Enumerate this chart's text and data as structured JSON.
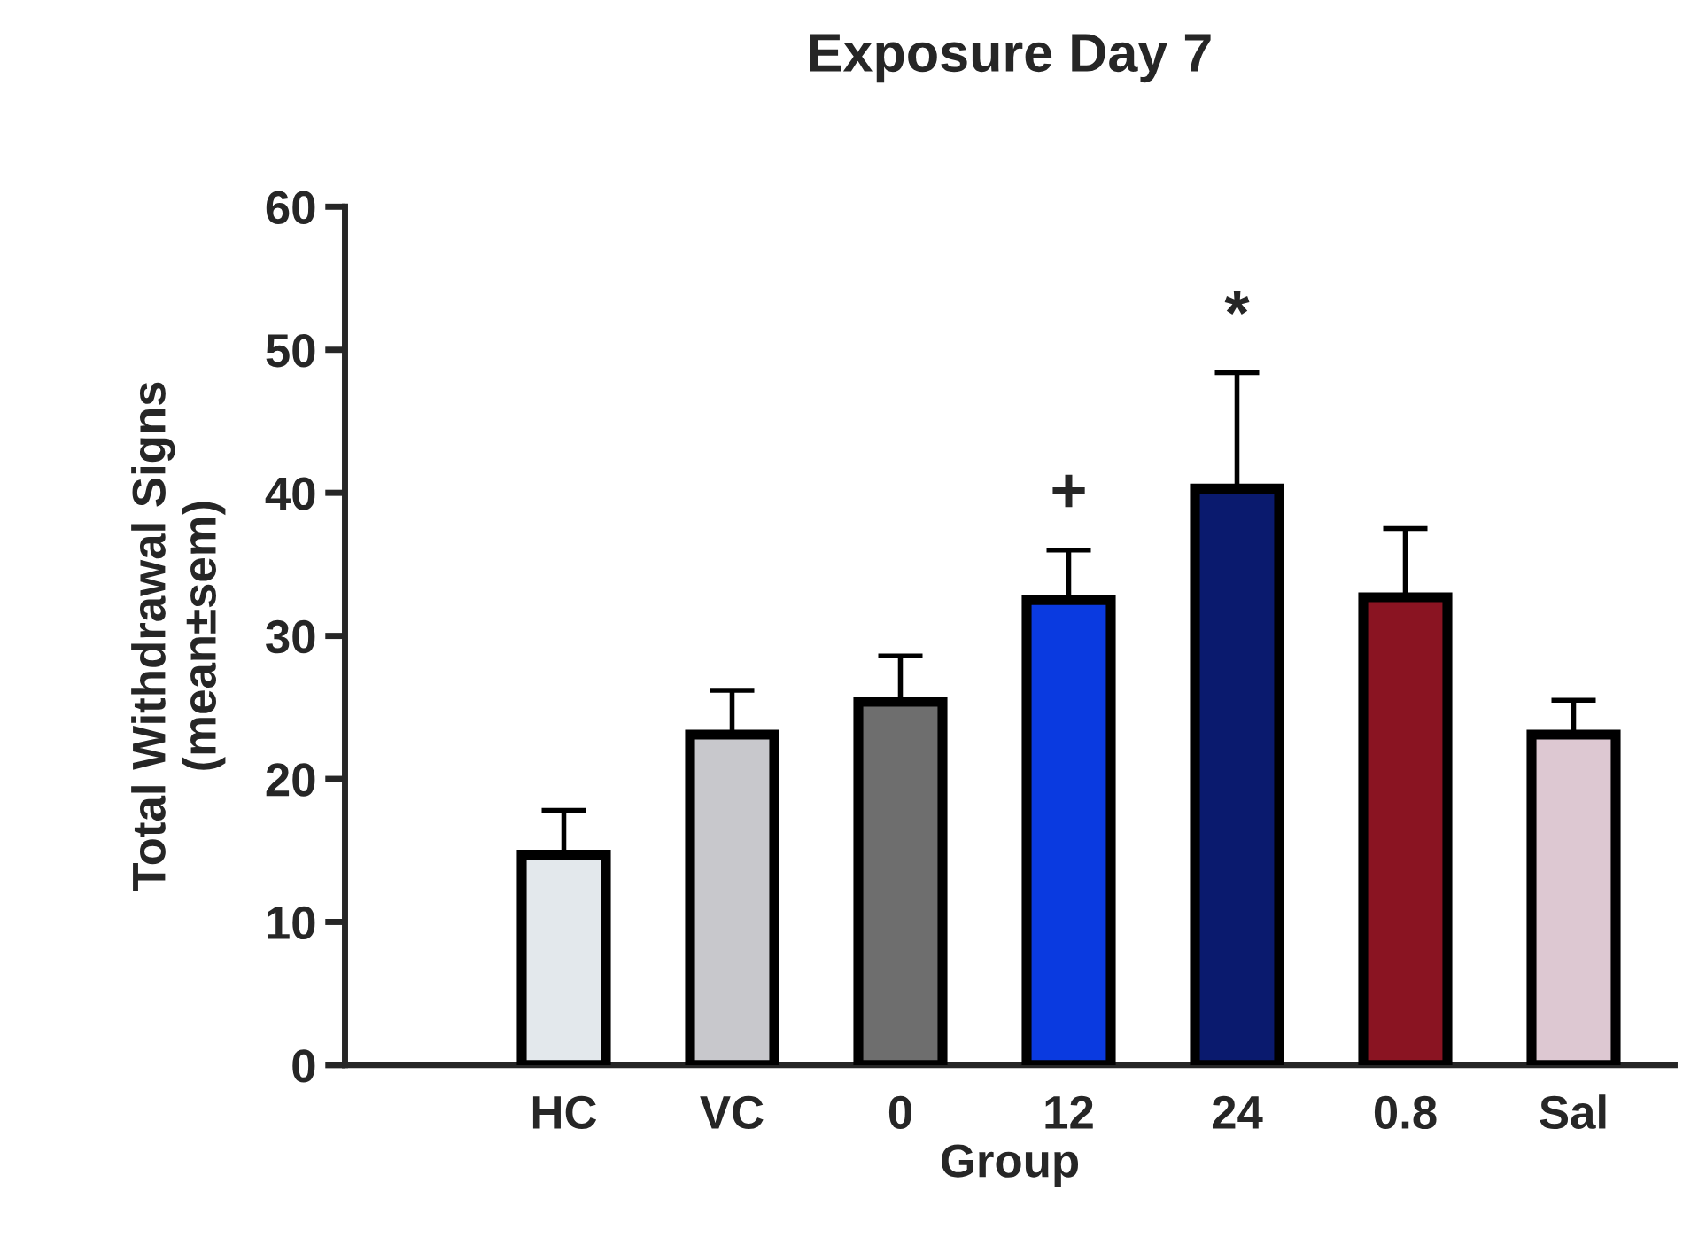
{
  "chart_data": {
    "type": "bar",
    "title": "Exposure Day 7",
    "xlabel": "Group",
    "ylabel": "Total Withdrawal Signs\n(mean±sem)",
    "categories": [
      "HC",
      "VC",
      "0",
      "12",
      "24",
      "0.8",
      "Sal"
    ],
    "values": [
      14.7,
      23.1,
      25.4,
      32.5,
      40.3,
      32.7,
      23.1
    ],
    "errors": [
      [
        14.7,
        17.8
      ],
      [
        23.1,
        26.2
      ],
      [
        25.4,
        28.6
      ],
      [
        32.5,
        36.0
      ],
      [
        40.3,
        48.4
      ],
      [
        32.7,
        37.5
      ],
      [
        23.1,
        25.5
      ]
    ],
    "colors": [
      "#e3e8ec",
      "#c8c8cc",
      "#6e6e6e",
      "#0a3ae0",
      "#0a1a6e",
      "#8a1422",
      "#ddc8d2"
    ],
    "ylim": [
      0,
      60
    ],
    "yticks": [
      0,
      10,
      20,
      30,
      40,
      50,
      60
    ],
    "grid": false,
    "annotations": [
      {
        "text": "+",
        "x": "12",
        "y": 36.0
      },
      {
        "text": "*",
        "x": "24",
        "y": 48.4
      }
    ]
  }
}
